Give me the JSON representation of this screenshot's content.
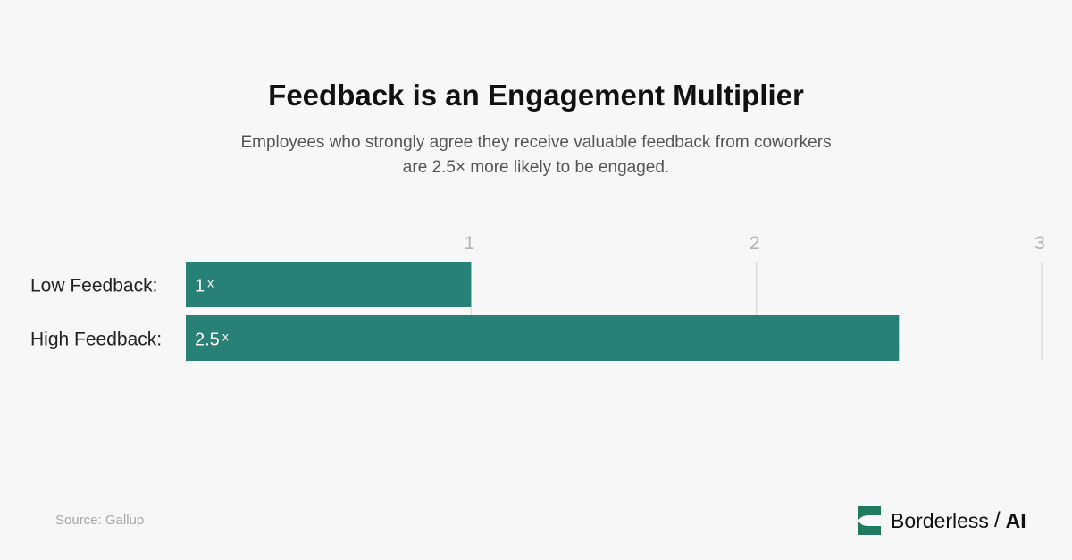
{
  "title": "Feedback is an Engagement Multiplier",
  "subtitle": {
    "line1": "Employees who strongly agree they receive valuable feedback from coworkers",
    "line2": "are 2.5× more likely to be engaged."
  },
  "source": "Source: Gallup",
  "brand": {
    "name": "Borderless",
    "separator": "/",
    "suffix": "AI",
    "color": "#1f7a5e"
  },
  "chart_data": {
    "type": "bar",
    "orientation": "horizontal",
    "categories": [
      "Low Feedback:",
      "High Feedback:"
    ],
    "values": [
      1,
      2.5
    ],
    "data_labels": [
      {
        "value": "1",
        "unit": "x"
      },
      {
        "value": "2.5",
        "unit": "x"
      }
    ],
    "xlim": [
      0,
      3
    ],
    "x_ticks": [
      "1",
      "2",
      "3"
    ],
    "grid": "vertical",
    "bar_color": "#278174"
  }
}
